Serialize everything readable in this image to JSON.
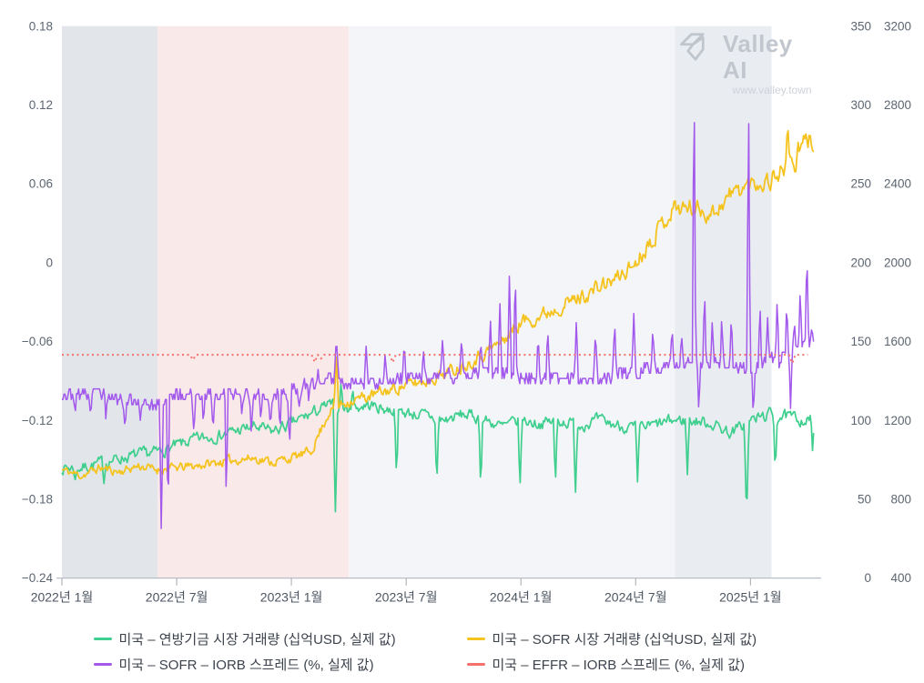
{
  "watermark": {
    "brand": "Valley AI",
    "url": "www.valley.town"
  },
  "chart_data": {
    "type": "line",
    "title": "",
    "x_axis": {
      "unit": "months since 2022-01",
      "domain_months": [
        0,
        39.6
      ],
      "tick_months": [
        0,
        6,
        12,
        18,
        24,
        30,
        36
      ],
      "tick_labels": [
        "2022년 1월",
        "2022년 7월",
        "2023년 1월",
        "2023년 7월",
        "2024년 1월",
        "2024년 7월",
        "2025년 1월"
      ]
    },
    "axes": {
      "left_spread": {
        "range": [
          -0.24,
          0.18
        ],
        "ticks": [
          "0.18",
          "0.12",
          "0.06",
          "0",
          "−0.06",
          "−0.12",
          "−0.18",
          "−0.24"
        ]
      },
      "right_ff_volume": {
        "range": [
          0,
          350
        ],
        "ticks": [
          "350",
          "300",
          "250",
          "200",
          "150",
          "100",
          "50",
          "0"
        ]
      },
      "right_sofr_volume": {
        "range": [
          400,
          3200
        ],
        "ticks": [
          "3200",
          "2800",
          "2400",
          "2000",
          "1600",
          "1200",
          "800",
          "400"
        ]
      }
    },
    "grid": false,
    "legend_position": "bottom",
    "bands": [
      {
        "from_month": 0,
        "to_month": 5,
        "color": "#e2e6ea"
      },
      {
        "from_month": 5,
        "to_month": 15,
        "color": "#fae9e9"
      },
      {
        "from_month": 15,
        "to_month": 32.05,
        "color": "#f4f5f8"
      },
      {
        "from_month": 32.05,
        "to_month": 37.1,
        "color": "#e9ecf0"
      }
    ],
    "series": [
      {
        "id": "ff-volume",
        "name": "미국 – 연방기금 시장 거래량 (십억USD, 실제 값)",
        "color": "#3ecf8e",
        "axis": "right_ff_volume",
        "style": "solid",
        "width": 1.7,
        "seed": 7,
        "points": 680,
        "end_month": 39.3,
        "noise_base": 3.2,
        "noise_rel": 0,
        "noise_decay": 0.5,
        "monthly_values": [
          70,
          70,
          73,
          76,
          78,
          80,
          84,
          88,
          90,
          93,
          96,
          93,
          98,
          104,
          110,
          107,
          110,
          107,
          105,
          103,
          100,
          104,
          101,
          96,
          100,
          98,
          100,
          97,
          100,
          97,
          95,
          97,
          100,
          100,
          98,
          92,
          100,
          104,
          102,
          100
        ],
        "events": [
          [
            0.7,
            62,
            0.1
          ],
          [
            2.2,
            60,
            0.1
          ],
          [
            14.3,
            40,
            0.12
          ],
          [
            14.6,
            125,
            0.1
          ],
          [
            15.2,
            122,
            0.1
          ],
          [
            17.5,
            62,
            0.1
          ],
          [
            19.6,
            57,
            0.1
          ],
          [
            21.9,
            55,
            0.1
          ],
          [
            23.95,
            55,
            0.1
          ],
          [
            25.8,
            58,
            0.1
          ],
          [
            26.85,
            52,
            0.1
          ],
          [
            30.1,
            60,
            0.1
          ],
          [
            32.7,
            65,
            0.1
          ],
          [
            35.8,
            36,
            0.12
          ],
          [
            37.3,
            66,
            0.1
          ],
          [
            39.25,
            79,
            0.08
          ]
        ]
      },
      {
        "id": "sofr-volume",
        "name": "미국 – SOFR 시장 거래량 (십억USD, 실제 값)",
        "color": "#f5c31e",
        "axis": "right_sofr_volume",
        "style": "solid",
        "width": 1.8,
        "seed": 11,
        "points": 680,
        "end_month": 39.3,
        "noise_base": 4,
        "noise_rel": 0.016,
        "noise_decay": 0.5,
        "monthly_values": [
          950,
          920,
          960,
          940,
          970,
          950,
          960,
          970,
          985,
          1000,
          1010,
          990,
          1010,
          1040,
          1250,
          1300,
          1320,
          1350,
          1380,
          1400,
          1440,
          1480,
          1540,
          1600,
          1700,
          1730,
          1780,
          1820,
          1870,
          1920,
          2000,
          2150,
          2280,
          2280,
          2250,
          2350,
          2400,
          2420,
          2500,
          2620
        ],
        "events": [
          [
            14.35,
            1530,
            0.12
          ],
          [
            37.95,
            2700,
            0.12
          ],
          [
            38.35,
            2440,
            0.1
          ]
        ]
      },
      {
        "id": "sofr-iorb-spread",
        "name": "미국 – SOFR – IORB 스프레드 (%, 실제 값)",
        "color": "#a259ec",
        "axis": "left_spread",
        "style": "solid",
        "width": 1.5,
        "seed": 23,
        "points": 720,
        "end_month": 39.3,
        "noise_base": 0.0045,
        "noise_rel": 0,
        "noise_decay": 0.35,
        "quantize": 0.004,
        "monthly_values": [
          -0.1,
          -0.1,
          -0.1,
          -0.104,
          -0.105,
          -0.108,
          -0.1,
          -0.1,
          -0.1,
          -0.1,
          -0.1,
          -0.102,
          -0.096,
          -0.094,
          -0.088,
          -0.09,
          -0.091,
          -0.09,
          -0.088,
          -0.088,
          -0.086,
          -0.086,
          -0.084,
          -0.084,
          -0.088,
          -0.088,
          -0.088,
          -0.088,
          -0.088,
          -0.085,
          -0.082,
          -0.08,
          -0.078,
          -0.075,
          -0.078,
          -0.078,
          -0.082,
          -0.075,
          -0.07,
          -0.062
        ],
        "events": [
          [
            0.7,
            -0.115,
            0.08
          ],
          [
            1.5,
            -0.118,
            0.08
          ],
          [
            2.3,
            -0.12,
            0.08
          ],
          [
            3.3,
            -0.125,
            0.1
          ],
          [
            4.1,
            -0.12,
            0.1
          ],
          [
            5.2,
            -0.21,
            0.1
          ],
          [
            5.55,
            -0.2,
            0.08
          ],
          [
            6.9,
            -0.13,
            0.1
          ],
          [
            7.4,
            -0.125,
            0.08
          ],
          [
            7.9,
            -0.128,
            0.1
          ],
          [
            8.6,
            -0.19,
            0.08
          ],
          [
            9.4,
            -0.115,
            0.08
          ],
          [
            9.9,
            -0.13,
            0.1
          ],
          [
            10.4,
            -0.12,
            0.08
          ],
          [
            10.9,
            -0.125,
            0.1
          ],
          [
            11.4,
            -0.13,
            0.08
          ],
          [
            11.9,
            -0.14,
            0.12
          ],
          [
            12.4,
            -0.11,
            0.1
          ],
          [
            12.9,
            -0.105,
            0.08
          ],
          [
            13.4,
            -0.08,
            0.08
          ],
          [
            14.35,
            -0.056,
            0.12
          ],
          [
            15.9,
            -0.062,
            0.1
          ],
          [
            16.9,
            -0.068,
            0.1
          ],
          [
            17.9,
            -0.06,
            0.1
          ],
          [
            18.9,
            -0.065,
            0.1
          ],
          [
            19.9,
            -0.058,
            0.1
          ],
          [
            20.9,
            -0.055,
            0.1
          ],
          [
            21.9,
            -0.06,
            0.1
          ],
          [
            22.4,
            -0.04,
            0.1
          ],
          [
            22.9,
            -0.03,
            0.1
          ],
          [
            23.4,
            -0.006,
            0.1
          ],
          [
            23.7,
            0.001,
            0.09
          ],
          [
            24.9,
            -0.055,
            0.1
          ],
          [
            25.4,
            -0.05,
            0.1
          ],
          [
            26.9,
            -0.042,
            0.1
          ],
          [
            27.9,
            -0.05,
            0.1
          ],
          [
            28.9,
            -0.045,
            0.1
          ],
          [
            29.9,
            -0.038,
            0.1
          ],
          [
            30.9,
            -0.05,
            0.1
          ],
          [
            31.9,
            -0.048,
            0.1
          ],
          [
            32.4,
            -0.055,
            0.1
          ],
          [
            33.05,
            0.155,
            0.09
          ],
          [
            33.3,
            -0.115,
            0.09
          ],
          [
            33.6,
            -0.02,
            0.09
          ],
          [
            34.0,
            -0.045,
            0.09
          ],
          [
            34.5,
            -0.04,
            0.09
          ],
          [
            35.0,
            -0.038,
            0.09
          ],
          [
            35.9,
            0.132,
            0.09
          ],
          [
            36.15,
            -0.12,
            0.09
          ],
          [
            36.5,
            -0.03,
            0.09
          ],
          [
            36.9,
            -0.04,
            0.09
          ],
          [
            37.4,
            -0.025,
            0.09
          ],
          [
            37.9,
            -0.03,
            0.09
          ],
          [
            38.1,
            -0.112,
            0.08
          ],
          [
            38.3,
            -0.045,
            0.09
          ],
          [
            38.6,
            -0.02,
            0.09
          ],
          [
            38.95,
            0.01,
            0.09
          ],
          [
            39.2,
            -0.05,
            0.08
          ]
        ]
      },
      {
        "id": "effr-iorb-spread",
        "name": "미국 – EFFR – IORB 스프레드 (%, 실제 값)",
        "color": "#f4706a",
        "axis": "left_spread",
        "style": "dotted",
        "width": 2,
        "seed": 3,
        "points": 240,
        "end_month": 39.0,
        "noise_base": 0,
        "noise_rel": 0,
        "noise_decay": 0.5,
        "base_value": -0.07,
        "events": [
          [
            6.9,
            -0.079,
            0.08
          ],
          [
            13.2,
            -0.077,
            0.08
          ],
          [
            13.6,
            -0.08,
            0.08
          ],
          [
            17.3,
            -0.076,
            0.08
          ],
          [
            37.6,
            -0.075,
            0.08
          ],
          [
            38.2,
            -0.078,
            0.08
          ]
        ]
      }
    ],
    "legend_order": [
      "ff-volume",
      "sofr-volume",
      "sofr-iorb-spread",
      "effr-iorb-spread"
    ]
  }
}
